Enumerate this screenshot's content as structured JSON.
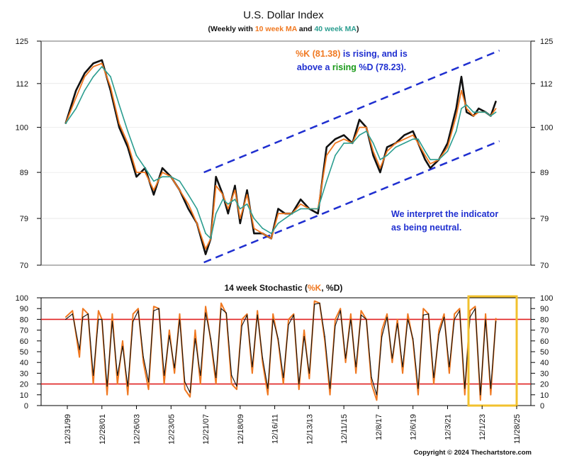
{
  "header": {
    "title": "U.S. Dollar Index",
    "subtitle_prefix": "(Weekly with ",
    "subtitle_ma10": "10 week MA",
    "subtitle_mid": " and ",
    "subtitle_ma40": "40 week MA",
    "subtitle_suffix": ")"
  },
  "annotations": {
    "pk_value": "%K (81.38)",
    "pk_rest": " is rising, and is",
    "line2_pre": "above a ",
    "line2_rising": "rising",
    "line2_post": " %D (78.23).",
    "interpret_1": "We interpret the indicator",
    "interpret_2": "as being neutral."
  },
  "lower": {
    "title_prefix": "14 week Stochastic (",
    "title_k": "%K",
    "title_sep": ", ",
    "title_d": "%D",
    "title_suffix": ")"
  },
  "copyright": "Copyright © 2024 Thechartstore.com",
  "colors": {
    "price": "#111111",
    "ma10": "#f07820",
    "ma40": "#2a9d8f",
    "channel": "#1f2fd0",
    "stoch_k": "#f07820",
    "stoch_d": "#111111",
    "band": "#e02020",
    "highlight": "#f2c12e",
    "annotation": "#1f2fd0",
    "annotation_green": "#1a9a1a"
  },
  "chart_data": [
    {
      "type": "line",
      "title": "U.S. Dollar Index",
      "scale": "log",
      "ylim": [
        70,
        125
      ],
      "yticks": [
        125,
        112,
        100,
        89,
        79,
        70
      ],
      "xlabels": [
        "12/31/99",
        "12/28/01",
        "12/26/03",
        "12/23/05",
        "12/21/07",
        "12/18/09",
        "12/16/11",
        "12/13/13",
        "12/11/15",
        "12/8/17",
        "12/6/19",
        "12/3/21",
        "12/1/23",
        "11/28/25"
      ],
      "series": [
        {
          "name": "U.S. Dollar Index",
          "x": [
            1999.9,
            2000.5,
            2001.0,
            2001.5,
            2002.0,
            2002.5,
            2003.0,
            2003.5,
            2004.0,
            2004.5,
            2005.0,
            2005.5,
            2006.0,
            2006.5,
            2007.0,
            2007.5,
            2008.0,
            2008.3,
            2008.6,
            2009.0,
            2009.3,
            2009.7,
            2010.0,
            2010.4,
            2010.8,
            2011.3,
            2011.8,
            2012.2,
            2012.6,
            2013.0,
            2013.5,
            2014.0,
            2014.5,
            2015.0,
            2015.5,
            2016.0,
            2016.5,
            2016.9,
            2017.3,
            2017.7,
            2018.1,
            2018.5,
            2019.0,
            2019.5,
            2020.0,
            2020.3,
            2020.7,
            2021.0,
            2021.5,
            2022.0,
            2022.5,
            2022.8,
            2023.1,
            2023.5,
            2023.8,
            2024.2,
            2024.5,
            2024.8
          ],
          "y": [
            101,
            110,
            115,
            118,
            119,
            110,
            100,
            95,
            88,
            90,
            84,
            90,
            88,
            85,
            81,
            78,
            72,
            75,
            88,
            84,
            80,
            86,
            78,
            85,
            76,
            76,
            75,
            81,
            80,
            80,
            83,
            81,
            80,
            95,
            97,
            98,
            96,
            102,
            100,
            93,
            89,
            95,
            96,
            98,
            99,
            96,
            92,
            90,
            92,
            96,
            105,
            114,
            104,
            103,
            105,
            104,
            103,
            107
          ]
        },
        {
          "name": "10 week MA",
          "x": [
            1999.9,
            2000.5,
            2001.0,
            2001.5,
            2002.0,
            2002.5,
            2003.0,
            2003.5,
            2004.0,
            2004.5,
            2005.0,
            2005.5,
            2006.0,
            2006.5,
            2007.0,
            2007.5,
            2008.0,
            2008.3,
            2008.6,
            2009.0,
            2009.3,
            2009.7,
            2010.0,
            2010.4,
            2010.8,
            2011.3,
            2011.8,
            2012.2,
            2012.6,
            2013.0,
            2013.5,
            2014.0,
            2014.5,
            2015.0,
            2015.5,
            2016.0,
            2016.5,
            2016.9,
            2017.3,
            2017.7,
            2018.1,
            2018.5,
            2019.0,
            2019.5,
            2020.0,
            2020.3,
            2020.7,
            2021.0,
            2021.5,
            2022.0,
            2022.5,
            2022.8,
            2023.1,
            2023.5,
            2023.8,
            2024.2,
            2024.5,
            2024.8
          ],
          "y": [
            101,
            108,
            114,
            117,
            118,
            111,
            101,
            96,
            89,
            89,
            85,
            89,
            88,
            85,
            82,
            78,
            73,
            75,
            86,
            84,
            81,
            85,
            79,
            84,
            77,
            76,
            75,
            80,
            80,
            80,
            82,
            81,
            81,
            93,
            96,
            97,
            96,
            100,
            100,
            94,
            90,
            94,
            96,
            97,
            98,
            96,
            93,
            91,
            92,
            95,
            103,
            110,
            105,
            103,
            104,
            104,
            103,
            105
          ]
        },
        {
          "name": "40 week MA",
          "x": [
            1999.9,
            2000.5,
            2001.0,
            2001.5,
            2002.0,
            2002.5,
            2003.0,
            2003.5,
            2004.0,
            2004.5,
            2005.0,
            2005.5,
            2006.0,
            2006.5,
            2007.0,
            2007.5,
            2008.0,
            2008.3,
            2008.6,
            2009.0,
            2009.3,
            2009.7,
            2010.0,
            2010.4,
            2010.8,
            2011.3,
            2011.8,
            2012.2,
            2012.6,
            2013.0,
            2013.5,
            2014.0,
            2014.5,
            2015.0,
            2015.5,
            2016.0,
            2016.5,
            2016.9,
            2017.3,
            2017.7,
            2018.1,
            2018.5,
            2019.0,
            2019.5,
            2020.0,
            2020.3,
            2020.7,
            2021.0,
            2021.5,
            2022.0,
            2022.5,
            2022.8,
            2023.1,
            2023.5,
            2023.8,
            2024.2,
            2024.5,
            2024.8
          ],
          "y": [
            101,
            105,
            110,
            114,
            117,
            114,
            106,
            99,
            93,
            90,
            87,
            88,
            88,
            87,
            84,
            81,
            76,
            75,
            80,
            83,
            82,
            83,
            81,
            82,
            79,
            77,
            76,
            78,
            79,
            80,
            81,
            81,
            81,
            87,
            93,
            96,
            96,
            98,
            99,
            96,
            92,
            93,
            95,
            96,
            97,
            97,
            94,
            92,
            92,
            94,
            99,
            105,
            106,
            104,
            104,
            104,
            103,
            104
          ]
        }
      ],
      "channel": {
        "upper": {
          "x": [
            2007.9,
            2025.0
          ],
          "y": [
            89,
            122
          ]
        },
        "lower": {
          "x": [
            2007.9,
            2025.0
          ],
          "y": [
            70.5,
            96.5
          ]
        }
      }
    },
    {
      "type": "line",
      "title": "14 week Stochastic (%K, %D)",
      "ylim": [
        0,
        100
      ],
      "yticks": [
        100,
        90,
        80,
        70,
        60,
        50,
        40,
        30,
        20,
        10,
        0
      ],
      "reference_lines": [
        80,
        20
      ],
      "series": [
        {
          "name": "%K",
          "x": [
            1999.9,
            2000.3,
            2000.7,
            2000.9,
            2001.2,
            2001.5,
            2001.8,
            2002.0,
            2002.3,
            2002.6,
            2002.9,
            2003.2,
            2003.5,
            2003.8,
            2004.1,
            2004.4,
            2004.7,
            2005.0,
            2005.3,
            2005.6,
            2005.9,
            2006.2,
            2006.5,
            2006.8,
            2007.1,
            2007.4,
            2007.7,
            2008.0,
            2008.3,
            2008.6,
            2008.9,
            2009.2,
            2009.5,
            2009.8,
            2010.1,
            2010.4,
            2010.7,
            2011.0,
            2011.3,
            2011.6,
            2011.9,
            2012.2,
            2012.5,
            2012.8,
            2013.1,
            2013.4,
            2013.7,
            2014.0,
            2014.3,
            2014.6,
            2014.9,
            2015.2,
            2015.5,
            2015.8,
            2016.1,
            2016.4,
            2016.7,
            2017.0,
            2017.3,
            2017.6,
            2017.9,
            2018.2,
            2018.5,
            2018.8,
            2019.1,
            2019.4,
            2019.7,
            2020.0,
            2020.3,
            2020.6,
            2020.9,
            2021.2,
            2021.5,
            2021.8,
            2022.1,
            2022.4,
            2022.7,
            2023.0,
            2023.3,
            2023.6,
            2023.9,
            2024.2,
            2024.5,
            2024.8
          ],
          "y": [
            82,
            88,
            45,
            90,
            85,
            20,
            88,
            80,
            10,
            85,
            20,
            60,
            10,
            85,
            90,
            40,
            15,
            92,
            90,
            20,
            70,
            30,
            85,
            15,
            8,
            70,
            20,
            92,
            60,
            20,
            95,
            85,
            20,
            15,
            80,
            85,
            30,
            88,
            40,
            10,
            85,
            60,
            20,
            80,
            85,
            15,
            70,
            25,
            97,
            95,
            60,
            10,
            80,
            90,
            40,
            85,
            30,
            88,
            80,
            20,
            5,
            70,
            85,
            40,
            80,
            30,
            85,
            60,
            10,
            90,
            85,
            20,
            70,
            85,
            30,
            85,
            90,
            10,
            88,
            92,
            5,
            85,
            10,
            81
          ]
        },
        {
          "name": "%D",
          "x": [
            1999.9,
            2000.3,
            2000.7,
            2000.9,
            2001.2,
            2001.5,
            2001.8,
            2002.0,
            2002.3,
            2002.6,
            2002.9,
            2003.2,
            2003.5,
            2003.8,
            2004.1,
            2004.4,
            2004.7,
            2005.0,
            2005.3,
            2005.6,
            2005.9,
            2006.2,
            2006.5,
            2006.8,
            2007.1,
            2007.4,
            2007.7,
            2008.0,
            2008.3,
            2008.6,
            2008.9,
            2009.2,
            2009.5,
            2009.8,
            2010.1,
            2010.4,
            2010.7,
            2011.0,
            2011.3,
            2011.6,
            2011.9,
            2012.2,
            2012.5,
            2012.8,
            2013.1,
            2013.4,
            2013.7,
            2014.0,
            2014.3,
            2014.6,
            2014.9,
            2015.2,
            2015.5,
            2015.8,
            2016.1,
            2016.4,
            2016.7,
            2017.0,
            2017.3,
            2017.6,
            2017.9,
            2018.2,
            2018.5,
            2018.8,
            2019.1,
            2019.4,
            2019.7,
            2020.0,
            2020.3,
            2020.6,
            2020.9,
            2021.2,
            2021.5,
            2021.8,
            2022.1,
            2022.4,
            2022.7,
            2023.0,
            2023.3,
            2023.6,
            2023.9,
            2024.2,
            2024.5,
            2024.8
          ],
          "y": [
            80,
            85,
            52,
            82,
            85,
            28,
            80,
            80,
            18,
            78,
            28,
            55,
            18,
            78,
            88,
            45,
            22,
            88,
            90,
            28,
            65,
            35,
            80,
            22,
            12,
            62,
            28,
            86,
            62,
            26,
            90,
            86,
            28,
            18,
            74,
            84,
            36,
            84,
            44,
            16,
            80,
            62,
            26,
            75,
            84,
            20,
            64,
            30,
            94,
            95,
            64,
            16,
            74,
            88,
            44,
            80,
            36,
            84,
            80,
            26,
            10,
            64,
            82,
            44,
            76,
            36,
            80,
            62,
            16,
            84,
            85,
            26,
            66,
            82,
            36,
            80,
            88,
            16,
            82,
            90,
            10,
            80,
            16,
            78
          ]
        }
      ]
    }
  ]
}
